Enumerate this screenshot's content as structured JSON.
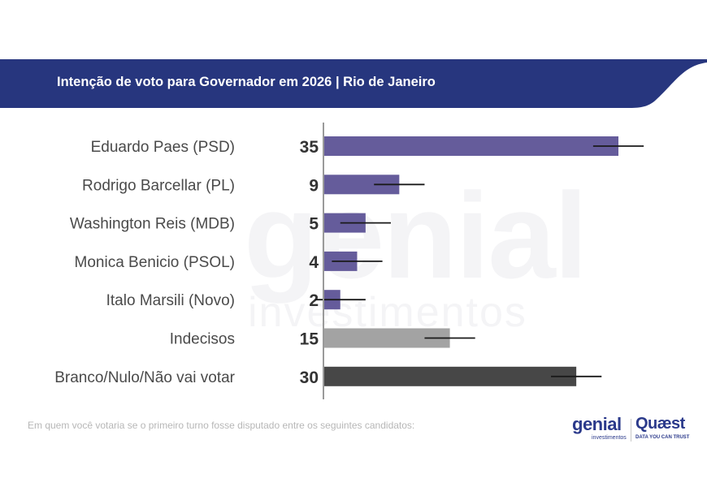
{
  "header": {
    "title": "Intenção de voto para Governador em 2026 | Rio de Janeiro",
    "color": "#27367e"
  },
  "watermark": {
    "line1": "genial",
    "line2": "investimentos"
  },
  "chart_data": {
    "type": "bar",
    "orientation": "horizontal",
    "title": "Intenção de voto para Governador em 2026 | Rio de Janeiro",
    "categories": [
      "Eduardo Paes (PSD)",
      "Rodrigo Barcellar (PL)",
      "Washington Reis (MDB)",
      "Monica Benicio (PSOL)",
      "Italo Marsili (Novo)",
      "Indecisos",
      "Branco/Nulo/Não vai votar"
    ],
    "values": [
      35,
      9,
      5,
      4,
      2,
      15,
      30
    ],
    "error_margin": 3,
    "colors": [
      "#655c9b",
      "#655c9b",
      "#655c9b",
      "#655c9b",
      "#655c9b",
      "#a3a3a3",
      "#474747"
    ],
    "xlim": [
      0,
      45
    ],
    "grid": false,
    "legend": "none"
  },
  "footnote": "Em quem você votaria se o primeiro turno fosse disputado entre os seguintes candidatos:",
  "logos": {
    "genial": {
      "word": "genial",
      "sub": "investimentos"
    },
    "quaest": {
      "word": "Quæst",
      "sub": "DATA YOU CAN TRUST"
    }
  }
}
